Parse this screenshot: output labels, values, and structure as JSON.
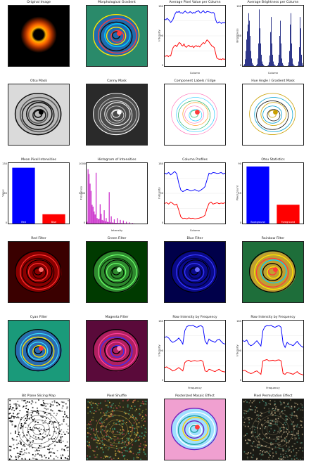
{
  "figure": {
    "panels": [
      {
        "title": "Original Image",
        "kind": "image",
        "style": "orig"
      },
      {
        "title": "Morphological Gradient",
        "kind": "image",
        "style": "contour-color"
      },
      {
        "title": "Average Pixel Value per Column",
        "kind": "chart",
        "chart": 0
      },
      {
        "title": "Average Brightness per Column",
        "kind": "chart",
        "chart": 1
      },
      {
        "title": "Otsu Mask",
        "kind": "image",
        "style": "contour-gray"
      },
      {
        "title": "Canny Mask",
        "kind": "image",
        "style": "contour-gray2"
      },
      {
        "title": "Component Labels / Edge",
        "kind": "image",
        "style": "contour-white"
      },
      {
        "title": "Hue Angle / Gradient Mask",
        "kind": "image",
        "style": "contour-white-y"
      },
      {
        "title": "Mean Pixel Intensities",
        "kind": "chart",
        "chart": 2
      },
      {
        "title": "Histogram of Intensities",
        "kind": "chart",
        "chart": 3
      },
      {
        "title": "Column Profiles",
        "kind": "chart",
        "chart": 4
      },
      {
        "title": "Otsu Statistics",
        "kind": "chart",
        "chart": 5
      },
      {
        "title": "Red Filter",
        "kind": "image",
        "style": "red"
      },
      {
        "title": "Green Filter",
        "kind": "image",
        "style": "green"
      },
      {
        "title": "Blue Filter",
        "kind": "image",
        "style": "blue"
      },
      {
        "title": "Rainbow Filter",
        "kind": "image",
        "style": "rainbow"
      },
      {
        "title": "Cyan Filter",
        "kind": "image",
        "style": "cyan"
      },
      {
        "title": "Magenta Filter",
        "kind": "image",
        "style": "magenta"
      },
      {
        "title": "Row Intensity by Frequency",
        "kind": "chart",
        "chart": 6
      },
      {
        "title": "Row Intensity by Frequency",
        "kind": "chart",
        "chart": 7
      },
      {
        "title": "Bit Plane Slicing Map",
        "kind": "image",
        "style": "noise-bw"
      },
      {
        "title": "Pixel Shuffle",
        "kind": "image",
        "style": "noise-color"
      },
      {
        "title": "Posterized Mosaic Effect",
        "kind": "image",
        "style": "pastel"
      },
      {
        "title": "Pixel Permutation Effect",
        "kind": "image",
        "style": "noise-dark"
      }
    ]
  },
  "chart_data": [
    {
      "type": "line",
      "title": "Average Pixel Value per Column",
      "xlabel": "Column",
      "ylabel": "Intensity",
      "x": [
        0,
        10,
        20,
        30,
        40,
        50,
        60,
        70,
        80,
        90,
        100,
        110,
        120,
        130,
        140,
        150,
        160,
        170,
        180,
        190,
        200,
        210,
        220,
        230,
        240,
        250,
        260,
        270,
        280,
        290,
        300,
        310,
        320,
        330,
        340,
        350,
        360,
        370,
        380,
        390,
        400,
        410,
        420,
        430,
        440,
        450,
        460,
        470,
        480,
        490,
        500
      ],
      "ylim": [
        0,
        180
      ],
      "series": [
        {
          "values": [
            140,
            138,
            142,
            139,
            135,
            130,
            134,
            140,
            150,
            158,
            162,
            160,
            163,
            158,
            159,
            157,
            161,
            164,
            160,
            158,
            159,
            162,
            160,
            157,
            160,
            158,
            162,
            163,
            165,
            160,
            158,
            162,
            165,
            160,
            159,
            163,
            162,
            161,
            160,
            158,
            160,
            157,
            140,
            130,
            128,
            132,
            129,
            127,
            130,
            128,
            131
          ],
          "color": "#0000ff"
        },
        {
          "values": [
            30,
            29,
            32,
            28,
            31,
            30,
            45,
            55,
            60,
            62,
            58,
            64,
            70,
            68,
            62,
            60,
            66,
            58,
            56,
            60,
            62,
            58,
            57,
            60,
            55,
            59,
            61,
            58,
            60,
            57,
            62,
            66,
            70,
            67,
            72,
            78,
            75,
            70,
            65,
            60,
            58,
            55,
            40,
            25,
            22,
            20,
            21,
            19,
            22,
            20,
            21
          ],
          "color": "#ff0000"
        }
      ]
    },
    {
      "type": "bar",
      "title": "Average Brightness per Column",
      "xlabel": "Column",
      "ylabel": "Brightness",
      "ylim": [
        0,
        160
      ],
      "values": [
        0,
        2,
        5,
        18,
        40,
        70,
        92,
        110,
        140,
        120,
        80,
        40,
        20,
        8,
        4,
        2,
        0,
        0,
        0,
        2,
        5,
        20,
        60,
        150,
        100,
        60,
        30,
        12,
        6,
        3,
        1,
        0,
        0,
        0,
        0,
        1,
        3,
        10,
        28,
        90,
        130,
        60,
        30,
        12,
        5,
        2,
        1,
        0,
        0,
        2,
        8,
        30,
        80,
        120,
        60,
        20,
        8,
        3,
        1,
        0,
        0,
        0,
        0,
        0,
        2,
        10,
        40,
        110,
        140,
        60,
        20,
        6,
        2,
        1,
        0,
        0,
        0,
        0,
        2,
        12,
        50,
        130,
        100,
        30,
        8,
        2
      ]
    },
    {
      "type": "bar",
      "title": "Mean Pixel Intensities",
      "categories": [
        "Red",
        "Blue"
      ],
      "ylabel": "Value",
      "ylim": [
        0,
        130
      ],
      "values": [
        120,
        20
      ],
      "colors": [
        "#0000ff",
        "#ff0000"
      ]
    },
    {
      "type": "bar",
      "title": "Histogram of Intensities",
      "xlabel": "Intensity",
      "ylabel": "Frequency",
      "ylim": [
        0,
        10000
      ],
      "values": [
        300,
        9000,
        8200,
        6600,
        5400,
        3100,
        2800,
        2000,
        1500,
        8400,
        900,
        700,
        800,
        3200,
        1600,
        600,
        500,
        2200,
        400,
        900,
        300,
        250,
        5200,
        200,
        1200,
        180,
        150,
        700,
        120,
        100,
        900,
        90,
        80,
        600,
        70,
        60,
        500,
        50,
        40,
        300,
        30,
        20,
        200,
        20,
        10,
        100,
        10,
        10,
        0,
        0,
        0,
        0,
        0,
        0,
        0,
        0,
        0,
        0,
        0,
        0
      ]
    },
    {
      "type": "line",
      "title": "Column Profiles",
      "xlabel": "Column",
      "ylabel": "Intensity",
      "ylim": [
        0,
        180
      ],
      "series": [
        {
          "values": [
            150,
            148,
            152,
            145,
            150,
            155,
            148,
            120,
            100,
            95,
            98,
            102,
            100,
            97,
            99,
            101,
            98,
            96,
            100,
            104,
            110,
            130,
            150,
            148,
            152,
            151,
            149,
            150,
            152,
            148,
            150
          ],
          "color": "#0000ff"
        },
        {
          "values": [
            60,
            62,
            58,
            64,
            60,
            55,
            58,
            40,
            20,
            15,
            16,
            14,
            17,
            15,
            16,
            14,
            15,
            16,
            18,
            20,
            25,
            45,
            60,
            64,
            58,
            60,
            62,
            59,
            61,
            60,
            62
          ],
          "color": "#ff0000"
        }
      ]
    },
    {
      "type": "bar",
      "title": "Otsu Statistics",
      "categories": [
        "Background",
        "Foreground"
      ],
      "ylabel": "Pixel Count",
      "ylim": [
        0,
        90
      ],
      "values": [
        85,
        28
      ],
      "colors": [
        "#0000ff",
        "#ff0000"
      ]
    },
    {
      "type": "line",
      "title": "Row Intensity by Frequency",
      "xlabel": "Frequency",
      "ylabel": "Intensity",
      "ylim": [
        0,
        180
      ],
      "series": [
        {
          "values": [
            130,
            132,
            128,
            120,
            115,
            118,
            122,
            128,
            120,
            110,
            150,
            162,
            165,
            164,
            166,
            162,
            160,
            163,
            165,
            160,
            120,
            110,
            125,
            120,
            118,
            115,
            122,
            125,
            118,
            112,
            110
          ],
          "color": "#0000ff"
        },
        {
          "values": [
            40,
            42,
            38,
            35,
            30,
            32,
            36,
            40,
            35,
            30,
            55,
            60,
            62,
            58,
            60,
            61,
            59,
            60,
            62,
            58,
            30,
            28,
            35,
            33,
            30,
            28,
            32,
            35,
            30,
            28,
            27
          ],
          "color": "#ff0000"
        }
      ]
    },
    {
      "type": "line",
      "title": "Row Intensity by Frequency",
      "xlabel": "Frequency",
      "ylabel": "Intensity",
      "ylim": [
        0,
        180
      ],
      "series": [
        {
          "values": [
            120,
            118,
            122,
            110,
            105,
            108,
            114,
            120,
            112,
            104,
            150,
            162,
            165,
            164,
            166,
            162,
            160,
            163,
            165,
            160,
            112,
            100,
            115,
            110,
            108,
            105,
            112,
            118,
            110,
            104,
            100
          ],
          "color": "#0000ff"
        },
        {
          "values": [
            30,
            32,
            28,
            25,
            22,
            24,
            28,
            30,
            25,
            20,
            60,
            62,
            64,
            60,
            61,
            62,
            60,
            62,
            63,
            60,
            22,
            20,
            26,
            24,
            22,
            20,
            24,
            28,
            22,
            20,
            18
          ],
          "color": "#ff0000"
        }
      ]
    }
  ]
}
